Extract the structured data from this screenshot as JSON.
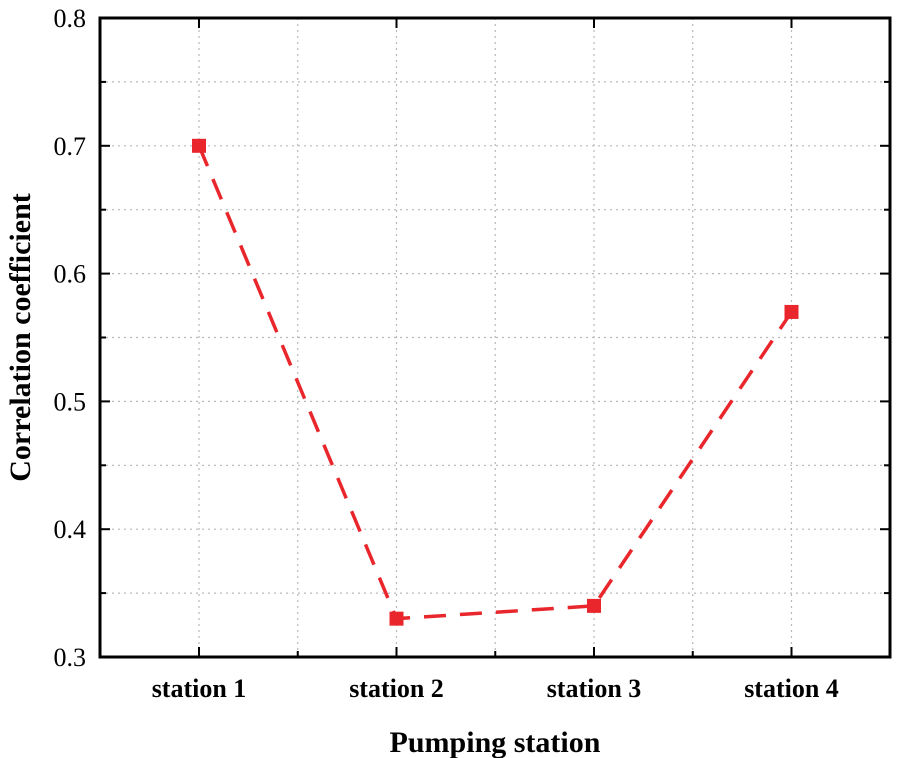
{
  "chart_data": {
    "type": "line",
    "categories": [
      "station 1",
      "station 2",
      "station 3",
      "station 4"
    ],
    "series": [
      {
        "values": [
          0.7,
          0.33,
          0.34,
          0.57
        ],
        "color": "#e8262b",
        "line_style": "dashed",
        "marker": "square"
      }
    ],
    "xlabel": "Pumping station",
    "ylabel": "Correlation coefficient",
    "ylim": [
      0.3,
      0.8
    ],
    "yticks": [
      "0.3",
      "0.4",
      "0.5",
      "0.6",
      "0.7",
      "0.8"
    ],
    "grid": true
  }
}
